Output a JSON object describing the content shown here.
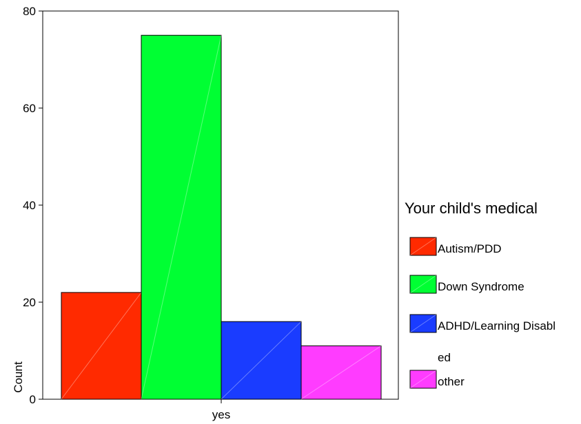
{
  "chart_data": {
    "type": "bar",
    "categories": [
      "yes"
    ],
    "series": [
      {
        "name": "Autism/PDD",
        "values": [
          22
        ],
        "color": "#ff2a00"
      },
      {
        "name": "Down Syndrome",
        "values": [
          75
        ],
        "color": "#00ff33"
      },
      {
        "name": "ADHD/Learning Disabled",
        "values": [
          16
        ],
        "color": "#1a3cff"
      },
      {
        "name": "other",
        "values": [
          11
        ],
        "color": "#ff3cff"
      }
    ],
    "ylabel": "Count",
    "xlabel": "",
    "ylim": [
      0,
      80
    ],
    "yticks": [
      0,
      20,
      40,
      60,
      80
    ],
    "legend_title": "Your child's medical",
    "legend_labels": [
      [
        "Autism/PDD"
      ],
      [
        "Down Syndrome"
      ],
      [
        "ADHD/Learning Disabl",
        "ed"
      ],
      [
        "other"
      ]
    ],
    "legend_position": "right",
    "grid": false
  }
}
